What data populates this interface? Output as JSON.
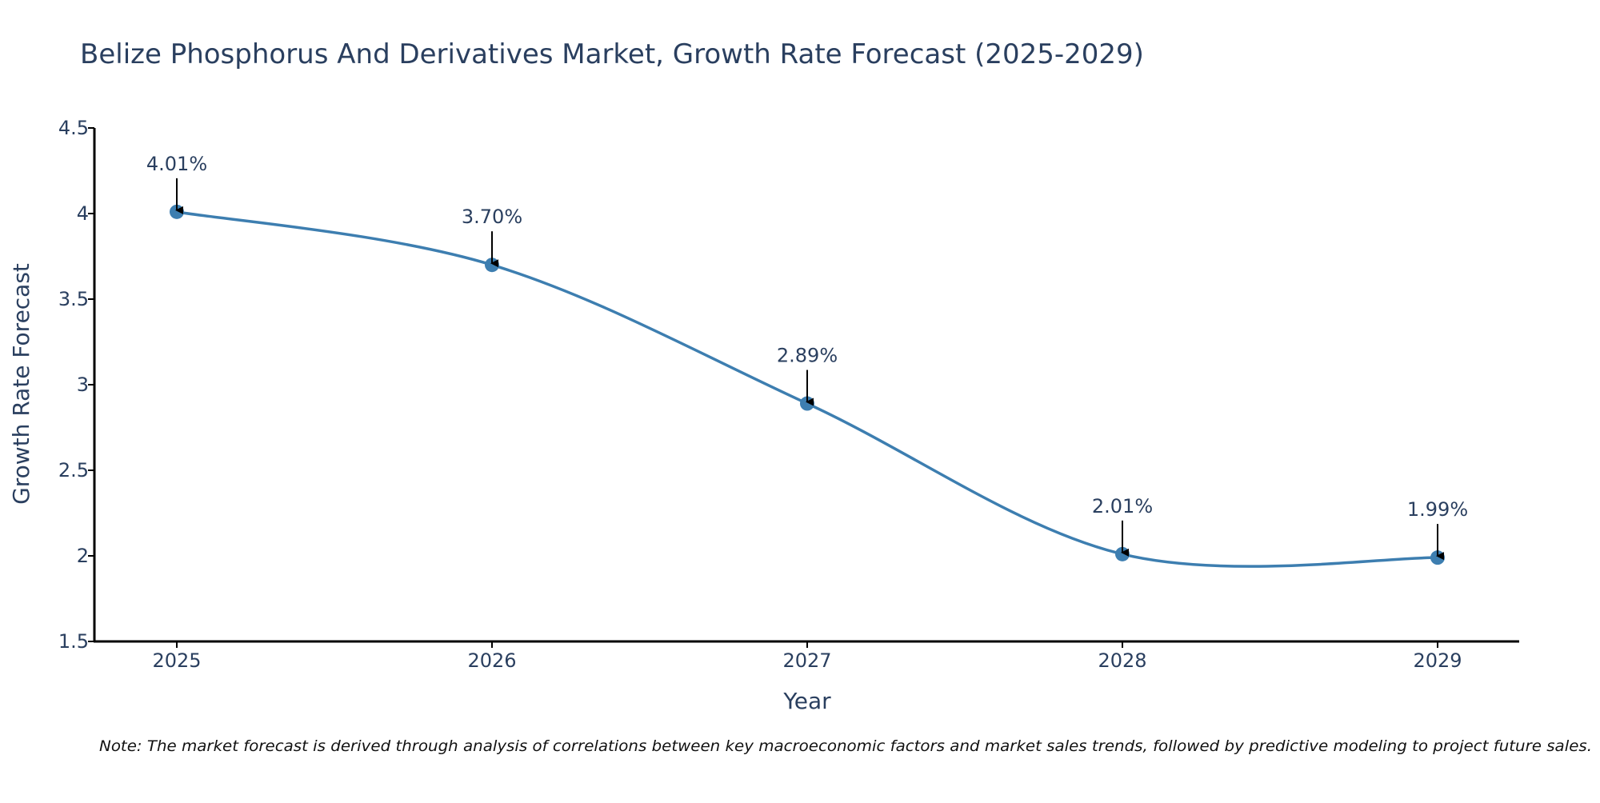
{
  "chart_data": {
    "type": "line",
    "title": "Belize Phosphorus And Derivatives Market, Growth Rate Forecast (2025-2029)",
    "xlabel": "Year",
    "ylabel": "Growth Rate Forecast",
    "categories": [
      "2025",
      "2026",
      "2027",
      "2028",
      "2029"
    ],
    "values": [
      4.01,
      3.7,
      2.89,
      2.01,
      1.99
    ],
    "data_labels": [
      "4.01%",
      "3.70%",
      "2.89%",
      "2.01%",
      "1.99%"
    ],
    "ylim": [
      1.5,
      4.5
    ],
    "yticks": [
      1.5,
      2,
      2.5,
      3,
      3.5,
      4,
      4.5
    ],
    "ytick_labels": [
      "1.5",
      "2",
      "2.5",
      "3",
      "3.5",
      "4",
      "4.5"
    ],
    "grid": false,
    "smooth": true,
    "note": "Note: The market forecast is derived through analysis of correlations between key macroeconomic factors and market sales trends, followed by predictive modeling to project future sales."
  },
  "colors": {
    "line": "#3d7eb0",
    "marker": "#3d7eb0",
    "text": "#2a3f5f",
    "axis": "#000000",
    "arrow": "#000000",
    "background": "#ffffff"
  }
}
